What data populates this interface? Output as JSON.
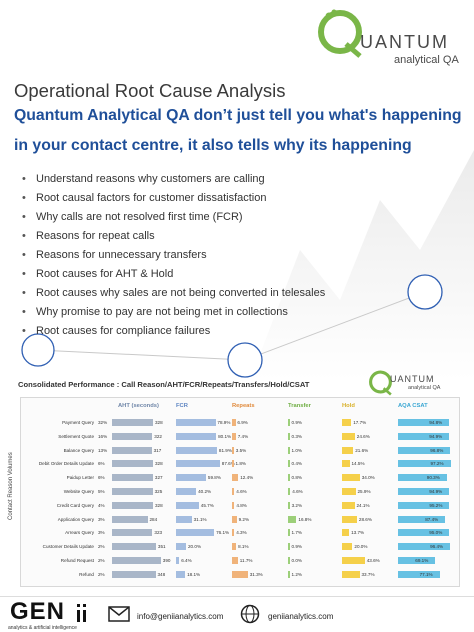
{
  "logo": {
    "word": "UANTUM",
    "sub": "analytical QA"
  },
  "title": "Operational Root Cause Analysis",
  "subtitle": {
    "line1": "Quantum Analytical QA don’t just tell you what's happening",
    "line2": "in your contact centre, it also tells why its happening"
  },
  "bullets": [
    "Understand reasons why customers are calling",
    "Root causal factors for customer dissatisfaction",
    "Why calls are not resolved first time (FCR)",
    "Reasons for repeat calls",
    "Reasons for unnecessary transfers",
    "Root causes for AHT & Hold",
    "Root causes why sales are not being converted in telesales",
    "Why promise to pay are not being met in collections",
    "Root causes for compliance failures"
  ],
  "panel": {
    "title": "Consolidated Performance : Call Reason/AHT/FCR/Repeats/Transfers/Hold/CSAT",
    "logo_word": "UANTUM",
    "logo_sub": "analytical QA",
    "y_axis_label": "Contact Reason Volumes",
    "headers": {
      "aht": "AHT (seconds)",
      "fcr": "FCR",
      "repeats": "Repeats",
      "transfer": "Transfer",
      "hold": "Hold",
      "csat": "AQA CSAT"
    },
    "colors": {
      "aht": "#a9b6c8",
      "fcr": "#a4bde0",
      "repeats": "#f0b37a",
      "transfer": "#9ccf79",
      "hold": "#f5d04a",
      "csat": "#67c1e3"
    }
  },
  "table_rows": [
    {
      "reason": "Payment Query",
      "pct": "32%",
      "aht": 328,
      "fcr": "78.9%",
      "repeats": "6.9%",
      "transfer": "0.9%",
      "hold": "17.7%",
      "csat": "94.8%"
    },
    {
      "reason": "Settlement Quote",
      "pct": "16%",
      "aht": 322,
      "fcr": "80.1%",
      "repeats": "7.4%",
      "transfer": "0.3%",
      "hold": "24.6%",
      "csat": "94.9%"
    },
    {
      "reason": "Balance Query",
      "pct": "13%",
      "aht": 317,
      "fcr": "81.9%",
      "repeats": "3.5%",
      "transfer": "1.0%",
      "hold": "21.6%",
      "csat": "96.8%"
    },
    {
      "reason": "Debit Order Details Update",
      "pct": "6%",
      "aht": 328,
      "fcr": "87.6%",
      "repeats": "1.8%",
      "transfer": "0.4%",
      "hold": "14.5%",
      "csat": "97.2%"
    },
    {
      "reason": "Paidup Letter",
      "pct": "6%",
      "aht": 327,
      "fcr": "59.8%",
      "repeats": "12.4%",
      "transfer": "0.8%",
      "hold": "34.0%",
      "csat": "90.3%"
    },
    {
      "reason": "Website Query",
      "pct": "5%",
      "aht": 325,
      "fcr": "40.2%",
      "repeats": "4.6%",
      "transfer": "4.6%",
      "hold": "25.9%",
      "csat": "94.9%"
    },
    {
      "reason": "Credit Card Query",
      "pct": "4%",
      "aht": 328,
      "fcr": "45.7%",
      "repeats": "4.8%",
      "transfer": "3.2%",
      "hold": "24.1%",
      "csat": "95.2%"
    },
    {
      "reason": "Application Query",
      "pct": "3%",
      "aht": 284,
      "fcr": "31.1%",
      "repeats": "9.2%",
      "transfer": "16.8%",
      "hold": "28.6%",
      "csat": "87.4%"
    },
    {
      "reason": "Arrears Query",
      "pct": "3%",
      "aht": 323,
      "fcr": "76.1%",
      "repeats": "4.3%",
      "transfer": "1.7%",
      "hold": "13.7%",
      "csat": "95.0%"
    },
    {
      "reason": "Customer Details Update",
      "pct": "2%",
      "aht": 351,
      "fcr": "20.0%",
      "repeats": "8.1%",
      "transfer": "0.9%",
      "hold": "20.0%",
      "csat": "96.4%"
    },
    {
      "reason": "Refund Request",
      "pct": "2%",
      "aht": 390,
      "fcr": "6.4%",
      "repeats": "11.7%",
      "transfer": "0.0%",
      "hold": "43.6%",
      "csat": "69.1%"
    },
    {
      "reason": "Refund",
      "pct": "2%",
      "aht": 348,
      "fcr": "18.1%",
      "repeats": "31.3%",
      "transfer": "1.2%",
      "hold": "33.7%",
      "csat": "77.1%"
    }
  ],
  "footer": {
    "brand": "GEN",
    "brand_sub": "analytics & artificial intelligence",
    "email": "info@geniianalytics.com",
    "web": "geniianalytics.com"
  }
}
